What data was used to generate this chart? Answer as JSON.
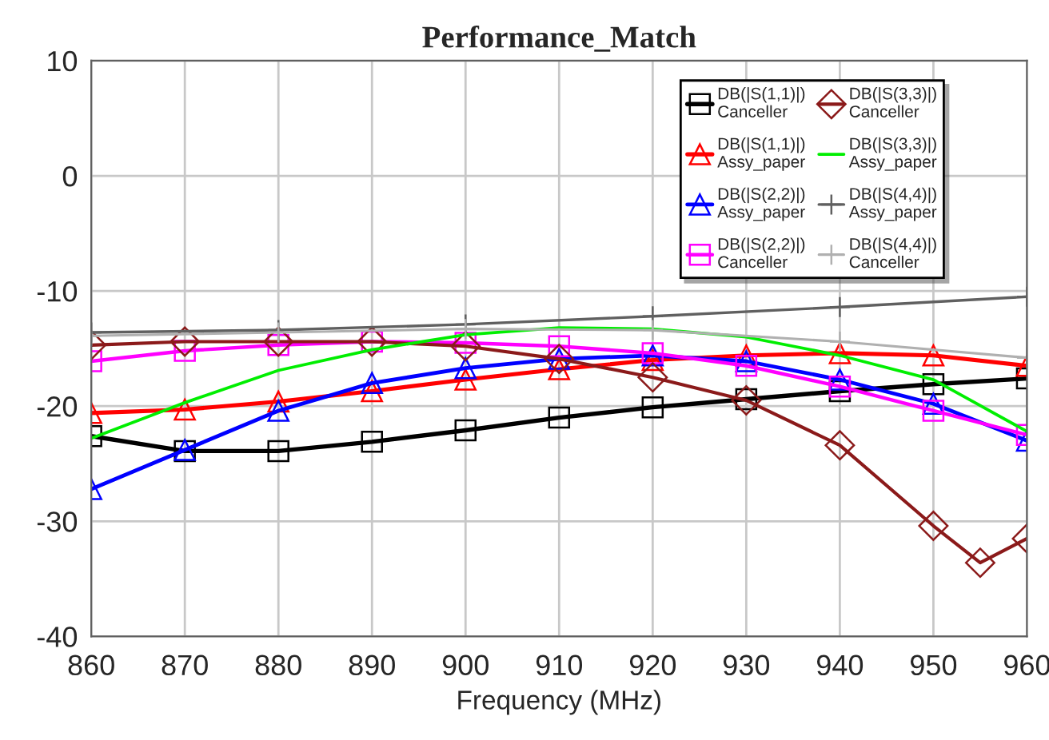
{
  "chart_data": {
    "type": "line",
    "title": "Performance_Match",
    "xlabel": "Frequency (MHz)",
    "x": [
      860,
      870,
      880,
      890,
      900,
      910,
      920,
      930,
      940,
      950,
      960
    ],
    "xlim": [
      860,
      960
    ],
    "xticks": [
      860,
      870,
      880,
      890,
      900,
      910,
      920,
      930,
      940,
      950,
      960
    ],
    "ylim": [
      -40,
      10
    ],
    "yticks": [
      -40,
      -30,
      -20,
      -10,
      0,
      10
    ],
    "grid": true,
    "legend": "top right",
    "series": [
      {
        "name": "DB(|S(1,1)|)\nCanceller",
        "color": "#000000",
        "marker": "square",
        "values": [
          -22.6,
          -23.9,
          -23.9,
          -23.1,
          -22.1,
          -21.0,
          -20.1,
          -19.4,
          -18.7,
          -18.1,
          -17.6
        ]
      },
      {
        "name": "DB(|S(1,1)|)\nAssy_paper",
        "color": "#ff0000",
        "marker": "triangle",
        "values": [
          -20.6,
          -20.3,
          -19.6,
          -18.7,
          -17.7,
          -16.8,
          -16.0,
          -15.6,
          -15.4,
          -15.6,
          -16.5
        ]
      },
      {
        "name": "DB(|S(2,2)|)\nAssy_paper",
        "color": "#0000ff",
        "marker": "triangle",
        "values": [
          -27.2,
          -23.8,
          -20.4,
          -18.0,
          -16.7,
          -15.9,
          -15.6,
          -16.1,
          -17.7,
          -19.8,
          -23.0
        ]
      },
      {
        "name": "DB(|S(2,2)|)\nCanceller",
        "color": "#ff00ff",
        "marker": "square",
        "values": [
          -16.1,
          -15.2,
          -14.7,
          -14.4,
          -14.5,
          -14.8,
          -15.4,
          -16.5,
          -18.3,
          -20.4,
          -22.5
        ]
      },
      {
        "name": "DB(|S(3,3)|)\nCanceller",
        "color": "#8b1a1a",
        "marker": "diamond",
        "x": [
          860,
          870,
          880,
          890,
          900,
          910,
          920,
          930,
          940,
          950,
          955,
          960
        ],
        "values": [
          -14.7,
          -14.4,
          -14.4,
          -14.4,
          -14.8,
          -15.9,
          -17.5,
          -19.5,
          -23.4,
          -30.4,
          -33.6,
          -31.5
        ]
      },
      {
        "name": "DB(|S(3,3)|)\nAssy_paper",
        "color": "#00ee00",
        "marker": "none",
        "values": [
          -22.8,
          -19.7,
          -16.9,
          -15.1,
          -13.8,
          -13.2,
          -13.3,
          -14.0,
          -15.6,
          -17.7,
          -22.2
        ]
      },
      {
        "name": "DB(|S(4,4)|)\nAssy_paper",
        "color": "#606060",
        "marker": "cross",
        "x": [
          860,
          880,
          900,
          920,
          940,
          960
        ],
        "values": [
          -13.6,
          -13.4,
          -12.9,
          -12.2,
          -11.4,
          -10.5
        ]
      },
      {
        "name": "DB(|S(4,4)|)\nCanceller",
        "color": "#b0b0b0",
        "marker": "cross",
        "x": [
          860,
          880,
          900,
          920,
          940,
          960
        ],
        "values": [
          -13.9,
          -13.6,
          -13.3,
          -13.4,
          -14.4,
          -15.8
        ]
      }
    ]
  }
}
